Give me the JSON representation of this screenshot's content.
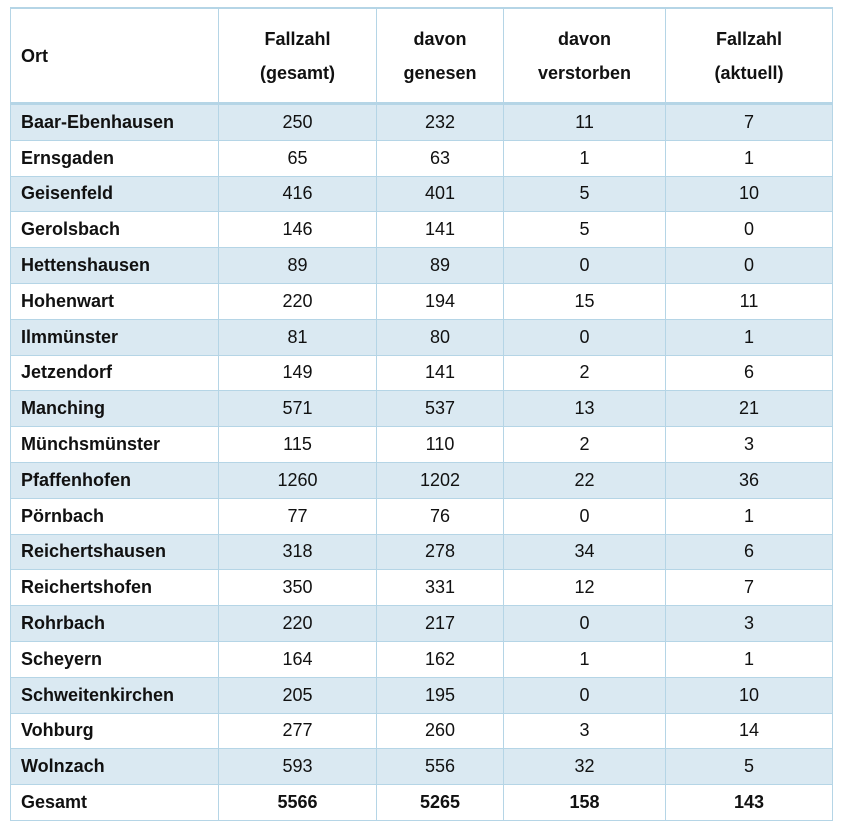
{
  "table": {
    "header": [
      [
        "Ort"
      ],
      [
        "Fallzahl",
        "(gesamt)"
      ],
      [
        "davon",
        "genesen"
      ],
      [
        "davon",
        "verstorben"
      ],
      [
        "Fallzahl",
        "(aktuell)"
      ]
    ],
    "rows": [
      [
        "Baar-Ebenhausen",
        250,
        232,
        11,
        7
      ],
      [
        "Ernsgaden",
        65,
        63,
        1,
        1
      ],
      [
        "Geisenfeld",
        416,
        401,
        5,
        10
      ],
      [
        "Gerolsbach",
        146,
        141,
        5,
        0
      ],
      [
        "Hettenshausen",
        89,
        89,
        0,
        0
      ],
      [
        "Hohenwart",
        220,
        194,
        15,
        11
      ],
      [
        "Ilmmünster",
        81,
        80,
        0,
        1
      ],
      [
        "Jetzendorf",
        149,
        141,
        2,
        6
      ],
      [
        "Manching",
        571,
        537,
        13,
        21
      ],
      [
        "Münchsmünster",
        115,
        110,
        2,
        3
      ],
      [
        "Pfaffenhofen",
        1260,
        1202,
        22,
        36
      ],
      [
        "Pörnbach",
        77,
        76,
        0,
        1
      ],
      [
        "Reichertshausen",
        318,
        278,
        34,
        6
      ],
      [
        "Reichertshofen",
        350,
        331,
        12,
        7
      ],
      [
        "Rohrbach",
        220,
        217,
        0,
        3
      ],
      [
        "Scheyern",
        164,
        162,
        1,
        1
      ],
      [
        "Schweitenkirchen",
        205,
        195,
        0,
        10
      ],
      [
        "Vohburg",
        277,
        260,
        3,
        14
      ],
      [
        "Wolnzach",
        593,
        556,
        32,
        5
      ]
    ],
    "total": [
      "Gesamt",
      5566,
      5265,
      158,
      143
    ]
  }
}
